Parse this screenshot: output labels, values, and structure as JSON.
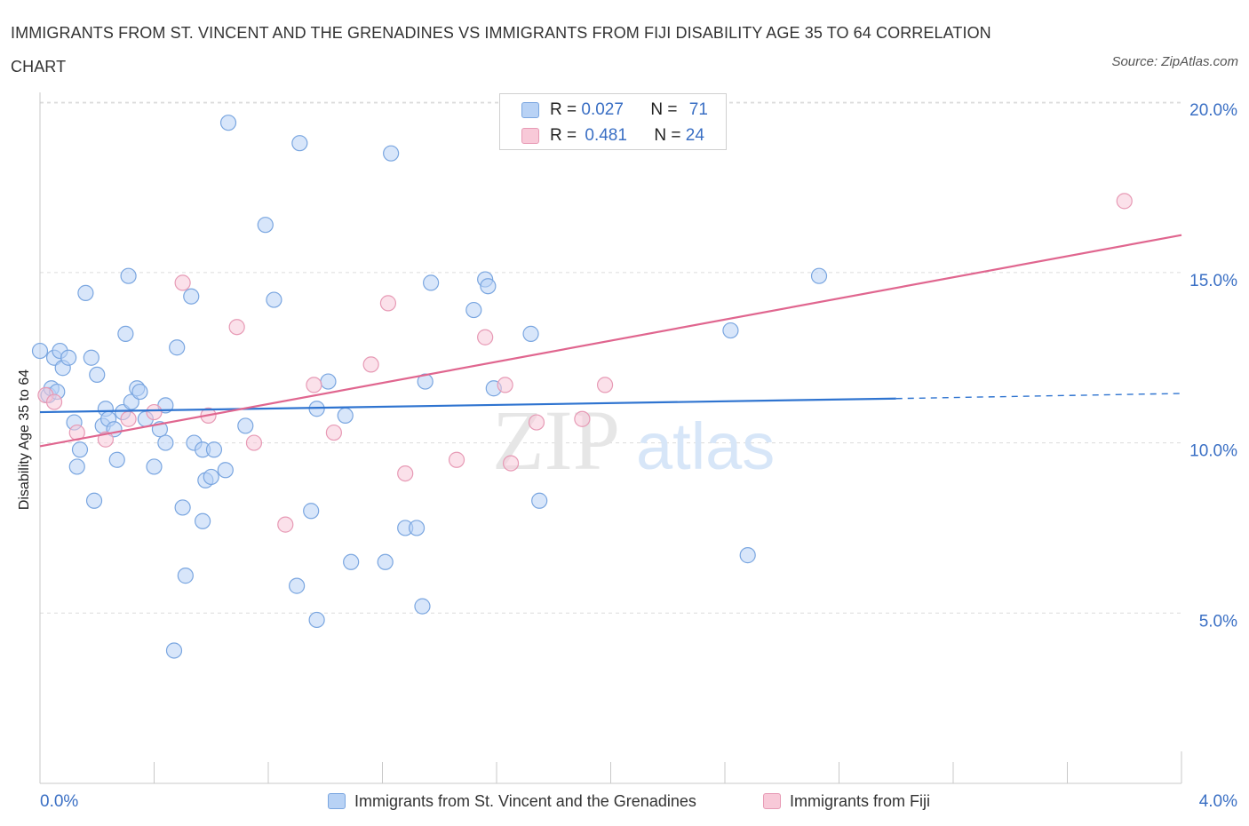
{
  "title": "IMMIGRANTS FROM ST. VINCENT AND THE GRENADINES VS IMMIGRANTS FROM FIJI DISABILITY AGE 35 TO 64 CORRELATION CHART",
  "source": "Source: ZipAtlas.com",
  "watermark": {
    "zip": "ZIP",
    "atlas": "atlas"
  },
  "legend": {
    "series1": {
      "r_label": "R = ",
      "r_value": "0.027",
      "n_label": "N = ",
      "n_value": "71"
    },
    "series2": {
      "r_label": "R = ",
      "r_value": "0.481",
      "n_label": "N = ",
      "n_value": "24"
    }
  },
  "colors": {
    "blue_fill": "#b8d2f5",
    "blue_stroke": "#7aa6e0",
    "blue_line": "#2f74d0",
    "pink_fill": "#f8c9d8",
    "pink_stroke": "#e79ab5",
    "pink_line": "#e0668f",
    "tick_label": "#3a6fc4",
    "grid": "#dcdcdc"
  },
  "chart_data": {
    "type": "scatter",
    "title": "IMMIGRANTS FROM ST. VINCENT AND THE GRENADINES VS IMMIGRANTS FROM FIJI DISABILITY AGE 35 TO 64 CORRELATION CHART",
    "xlabel": "",
    "ylabel": "Disability Age 35 to 64",
    "xlim": [
      0,
      4.0
    ],
    "ylim": [
      0,
      20.5
    ],
    "x_tick_labels": [
      "0.0%",
      "4.0%"
    ],
    "y_ticks": [
      5,
      10,
      15,
      20
    ],
    "y_tick_labels": [
      "5.0%",
      "10.0%",
      "15.0%",
      "20.0%"
    ],
    "grid": true,
    "legend_position": "top-center and bottom",
    "series": [
      {
        "name": "Immigrants from St. Vincent and the Grenadines",
        "color": "blue",
        "trend": {
          "x0": 0.0,
          "y0": 10.9,
          "x1": 3.0,
          "y1": 11.3,
          "x_dash_end": 4.0,
          "y_dash_end": 11.45
        },
        "points": [
          [
            0.0,
            12.7
          ],
          [
            0.03,
            11.4
          ],
          [
            0.04,
            11.6
          ],
          [
            0.05,
            12.5
          ],
          [
            0.06,
            11.5
          ],
          [
            0.07,
            12.7
          ],
          [
            0.08,
            12.2
          ],
          [
            0.1,
            12.5
          ],
          [
            0.12,
            10.6
          ],
          [
            0.13,
            9.3
          ],
          [
            0.14,
            9.8
          ],
          [
            0.16,
            14.4
          ],
          [
            0.18,
            12.5
          ],
          [
            0.19,
            8.3
          ],
          [
            0.2,
            12.0
          ],
          [
            0.22,
            10.5
          ],
          [
            0.23,
            11.0
          ],
          [
            0.24,
            10.7
          ],
          [
            0.26,
            10.4
          ],
          [
            0.27,
            9.5
          ],
          [
            0.29,
            10.9
          ],
          [
            0.3,
            13.2
          ],
          [
            0.31,
            14.9
          ],
          [
            0.32,
            11.2
          ],
          [
            0.34,
            11.6
          ],
          [
            0.35,
            11.5
          ],
          [
            0.37,
            10.7
          ],
          [
            0.4,
            9.3
          ],
          [
            0.42,
            10.4
          ],
          [
            0.44,
            11.1
          ],
          [
            0.44,
            10.0
          ],
          [
            0.47,
            3.9
          ],
          [
            0.48,
            12.8
          ],
          [
            0.5,
            8.1
          ],
          [
            0.51,
            6.1
          ],
          [
            0.53,
            14.3
          ],
          [
            0.54,
            10.0
          ],
          [
            0.57,
            9.8
          ],
          [
            0.57,
            7.7
          ],
          [
            0.58,
            8.9
          ],
          [
            0.6,
            9.0
          ],
          [
            0.61,
            9.8
          ],
          [
            0.65,
            9.2
          ],
          [
            0.66,
            19.4
          ],
          [
            0.72,
            10.5
          ],
          [
            0.79,
            16.4
          ],
          [
            0.82,
            14.2
          ],
          [
            0.9,
            5.8
          ],
          [
            0.91,
            18.8
          ],
          [
            0.95,
            8.0
          ],
          [
            0.97,
            11.0
          ],
          [
            0.97,
            4.8
          ],
          [
            1.01,
            11.8
          ],
          [
            1.07,
            10.8
          ],
          [
            1.09,
            6.5
          ],
          [
            1.21,
            6.5
          ],
          [
            1.23,
            18.5
          ],
          [
            1.28,
            7.5
          ],
          [
            1.32,
            7.5
          ],
          [
            1.34,
            5.2
          ],
          [
            1.35,
            11.8
          ],
          [
            1.37,
            14.7
          ],
          [
            1.52,
            13.9
          ],
          [
            1.56,
            14.8
          ],
          [
            1.57,
            14.6
          ],
          [
            1.59,
            11.6
          ],
          [
            1.72,
            13.2
          ],
          [
            1.75,
            8.3
          ],
          [
            2.42,
            13.3
          ],
          [
            2.48,
            6.7
          ],
          [
            2.73,
            14.9
          ]
        ]
      },
      {
        "name": "Immigrants from Fiji",
        "color": "pink",
        "trend": {
          "x0": 0.0,
          "y0": 9.9,
          "x1": 4.0,
          "y1": 16.1
        },
        "points": [
          [
            0.02,
            11.4
          ],
          [
            0.13,
            10.3
          ],
          [
            0.23,
            10.1
          ],
          [
            0.31,
            10.7
          ],
          [
            0.4,
            10.9
          ],
          [
            0.5,
            14.7
          ],
          [
            0.59,
            10.8
          ],
          [
            0.69,
            13.4
          ],
          [
            0.75,
            10.0
          ],
          [
            0.86,
            7.6
          ],
          [
            0.96,
            11.7
          ],
          [
            1.03,
            10.3
          ],
          [
            1.16,
            12.3
          ],
          [
            1.22,
            14.1
          ],
          [
            1.28,
            9.1
          ],
          [
            1.46,
            9.5
          ],
          [
            1.56,
            13.1
          ],
          [
            1.63,
            11.7
          ],
          [
            1.65,
            9.4
          ],
          [
            1.74,
            10.6
          ],
          [
            1.9,
            10.7
          ],
          [
            1.98,
            11.7
          ],
          [
            3.8,
            17.1
          ],
          [
            0.05,
            11.2
          ]
        ]
      }
    ]
  },
  "bottom_legend": {
    "series1_label": "Immigrants from St. Vincent and the Grenadines",
    "series2_label": "Immigrants from Fiji"
  }
}
